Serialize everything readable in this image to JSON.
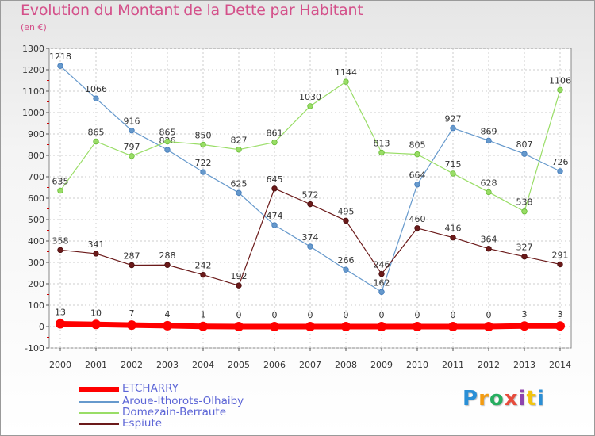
{
  "chart_data": {
    "type": "line",
    "title": "Evolution du Montant de la Dette par Habitant",
    "subtitle": "(en €)",
    "x": [
      "2000",
      "2001",
      "2002",
      "2003",
      "2004",
      "2005",
      "2006",
      "2007",
      "2008",
      "2009",
      "2010",
      "2011",
      "2012",
      "2013",
      "2014"
    ],
    "yticks": [
      "-100",
      "0",
      "100",
      "200",
      "300",
      "400",
      "500",
      "600",
      "700",
      "800",
      "900",
      "1000",
      "1100",
      "1200",
      "1300"
    ],
    "ylim": [
      -100,
      1300
    ],
    "grid": true,
    "legend_position": "bottom-left",
    "series": [
      {
        "name": "ETCHARRY",
        "color": "#ff0000",
        "values": [
          13,
          10,
          7,
          4,
          1,
          0,
          0,
          0,
          0,
          0,
          0,
          0,
          0,
          3,
          3
        ]
      },
      {
        "name": "Aroue-Ithorots-Olhaiby",
        "color": "#6699cc",
        "values": [
          1218,
          1066,
          916,
          826,
          722,
          625,
          474,
          374,
          266,
          162,
          664,
          927,
          869,
          807,
          726
        ]
      },
      {
        "name": "Domezain-Berraute",
        "color": "#99dd66",
        "values": [
          635,
          865,
          797,
          865,
          850,
          827,
          861,
          1030,
          1144,
          813,
          805,
          715,
          628,
          538,
          1106
        ]
      },
      {
        "name": "Espiute",
        "color": "#6b1a1a",
        "values": [
          358,
          341,
          287,
          288,
          242,
          192,
          645,
          572,
          495,
          246,
          460,
          416,
          364,
          327,
          291
        ]
      }
    ]
  },
  "logo": {
    "text": "Proxiti"
  }
}
